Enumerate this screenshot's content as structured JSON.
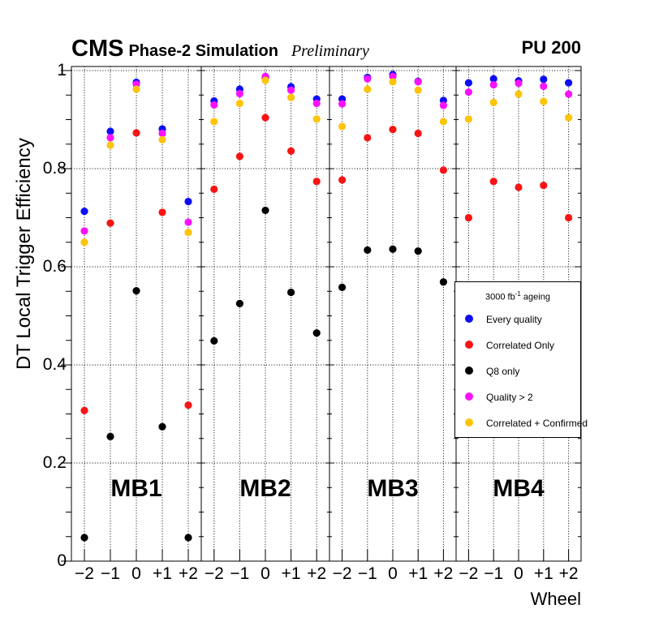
{
  "header": {
    "experiment": "CMS",
    "label": "Phase-2 Simulation",
    "preliminary": "Preliminary",
    "pileup": "PU 200"
  },
  "axes": {
    "y_title": "DT Local Trigger Efficiency",
    "x_title": "Wheel",
    "y_tick_labels": [
      "0",
      "0.2",
      "0.4",
      "0.6",
      "0.8",
      "1"
    ],
    "y_tick_values": [
      0,
      0.2,
      0.4,
      0.6,
      0.8,
      1
    ],
    "wheel_tick_labels": [
      "−2",
      "−1",
      "0",
      "+1",
      "+2"
    ]
  },
  "panels": [
    "MB1",
    "MB2",
    "MB3",
    "MB4"
  ],
  "legend": {
    "title_main": "3000 fb",
    "title_sup": "-1",
    "title_tail": " ageing",
    "entries": [
      {
        "label": "Every quality",
        "color": "#0d0df5"
      },
      {
        "label": "Correlated Only",
        "color": "#f81414"
      },
      {
        "label": "Q8 only",
        "color": "#000000"
      },
      {
        "label": "Quality > 2",
        "color": "#fb12fb"
      },
      {
        "label": "Correlated + Confirmed",
        "color": "#fdc408"
      }
    ]
  },
  "chart_data": {
    "type": "scatter",
    "title": "CMS Phase-2 Simulation Preliminary, PU 200",
    "xlabel": "Wheel",
    "ylabel": "DT Local Trigger Efficiency",
    "ylim": [
      0,
      1.0
    ],
    "grid": true,
    "legend_position": "middle-right",
    "legend_title": "3000 fb-1 ageing",
    "x_panels": [
      "MB1",
      "MB2",
      "MB3",
      "MB4"
    ],
    "wheels": [
      -2,
      -1,
      0,
      1,
      2
    ],
    "series": [
      {
        "name": "Every quality",
        "color": "#0d0df5",
        "values": [
          [
            0.713,
            0.876,
            0.976,
            0.881,
            0.733
          ],
          [
            0.938,
            0.962,
            0.985,
            0.967,
            0.942
          ],
          [
            0.942,
            0.986,
            0.992,
            0.978,
            0.939
          ],
          [
            0.975,
            0.983,
            0.979,
            0.982,
            0.975
          ]
        ]
      },
      {
        "name": "Correlated Only",
        "color": "#f81414",
        "values": [
          [
            0.307,
            0.689,
            0.873,
            0.711,
            0.318
          ],
          [
            0.758,
            0.825,
            0.904,
            0.836,
            0.774
          ],
          [
            0.777,
            0.863,
            0.88,
            0.872,
            0.797
          ],
          [
            0.7,
            0.774,
            0.762,
            0.766,
            0.7
          ]
        ]
      },
      {
        "name": "Q8 only",
        "color": "#000000",
        "values": [
          [
            0.048,
            0.254,
            0.551,
            0.274,
            0.048
          ],
          [
            0.449,
            0.525,
            0.715,
            0.548,
            0.465
          ],
          [
            0.558,
            0.634,
            0.636,
            0.632,
            0.569
          ],
          [
            null,
            null,
            null,
            null,
            null
          ]
        ]
      },
      {
        "name": "Quality > 2",
        "color": "#fb12fb",
        "values": [
          [
            0.673,
            0.863,
            0.972,
            0.872,
            0.691
          ],
          [
            0.93,
            0.953,
            0.988,
            0.96,
            0.933
          ],
          [
            0.932,
            0.983,
            0.988,
            0.977,
            0.929
          ],
          [
            0.956,
            0.971,
            0.974,
            0.968,
            0.952
          ]
        ]
      },
      {
        "name": "Correlated + Confirmed",
        "color": "#fdc408",
        "values": [
          [
            0.65,
            0.848,
            0.962,
            0.859,
            0.67
          ],
          [
            0.896,
            0.933,
            0.98,
            0.945,
            0.901
          ],
          [
            0.886,
            0.962,
            0.977,
            0.96,
            0.896
          ],
          [
            0.901,
            0.935,
            0.952,
            0.937,
            0.904
          ]
        ]
      }
    ]
  }
}
